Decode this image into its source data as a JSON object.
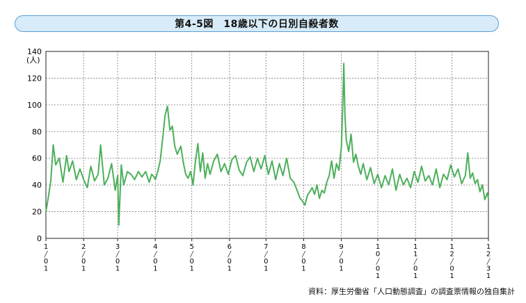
{
  "title": "第4-5図　18歳以下の日別自殺者数",
  "source": "資料：厚生労働省「人口動態調査」の調査票情報の独自集計",
  "chart_data": {
    "type": "line",
    "title": "第4-5図　18歳以下の日別自殺者数",
    "ylabel": "(人)",
    "ylim": [
      0,
      140
    ],
    "yticks": [
      0,
      20,
      40,
      60,
      80,
      100,
      120,
      140
    ],
    "grid": true,
    "line_color": "#4caf5a",
    "x_tick_labels": [
      "1/01",
      "2/01",
      "3/01",
      "4/01",
      "5/01",
      "6/01",
      "7/01",
      "8/01",
      "9/01",
      "10/01",
      "11/01",
      "12/01",
      "12/31"
    ],
    "x_tick_days": [
      1,
      32,
      60,
      91,
      121,
      152,
      182,
      213,
      244,
      274,
      305,
      335,
      365
    ],
    "series_keypoints": [
      [
        1,
        20
      ],
      [
        3,
        31
      ],
      [
        5,
        43
      ],
      [
        7,
        70
      ],
      [
        9,
        55
      ],
      [
        12,
        60
      ],
      [
        15,
        42
      ],
      [
        18,
        62
      ],
      [
        20,
        50
      ],
      [
        23,
        58
      ],
      [
        26,
        44
      ],
      [
        29,
        52
      ],
      [
        32,
        44
      ],
      [
        35,
        38
      ],
      [
        38,
        54
      ],
      [
        41,
        43
      ],
      [
        44,
        48
      ],
      [
        46,
        70
      ],
      [
        49,
        40
      ],
      [
        52,
        45
      ],
      [
        55,
        56
      ],
      [
        58,
        36
      ],
      [
        60,
        47
      ],
      [
        61,
        10
      ],
      [
        63,
        55
      ],
      [
        65,
        40
      ],
      [
        68,
        50
      ],
      [
        71,
        48
      ],
      [
        74,
        44
      ],
      [
        77,
        50
      ],
      [
        80,
        46
      ],
      [
        83,
        50
      ],
      [
        86,
        42
      ],
      [
        88,
        48
      ],
      [
        90,
        46
      ],
      [
        91,
        44
      ],
      [
        93,
        50
      ],
      [
        95,
        58
      ],
      [
        97,
        74
      ],
      [
        99,
        92
      ],
      [
        101,
        99
      ],
      [
        103,
        81
      ],
      [
        105,
        84
      ],
      [
        107,
        69
      ],
      [
        109,
        63
      ],
      [
        112,
        69
      ],
      [
        114,
        57
      ],
      [
        116,
        48
      ],
      [
        118,
        45
      ],
      [
        120,
        50
      ],
      [
        122,
        40
      ],
      [
        124,
        58
      ],
      [
        126,
        71
      ],
      [
        128,
        50
      ],
      [
        130,
        64
      ],
      [
        132,
        45
      ],
      [
        134,
        56
      ],
      [
        136,
        48
      ],
      [
        139,
        58
      ],
      [
        142,
        63
      ],
      [
        145,
        50
      ],
      [
        148,
        56
      ],
      [
        151,
        48
      ],
      [
        154,
        59
      ],
      [
        157,
        62
      ],
      [
        160,
        51
      ],
      [
        163,
        47
      ],
      [
        166,
        57
      ],
      [
        169,
        61
      ],
      [
        172,
        50
      ],
      [
        175,
        60
      ],
      [
        178,
        52
      ],
      [
        181,
        62
      ],
      [
        184,
        48
      ],
      [
        187,
        58
      ],
      [
        190,
        44
      ],
      [
        193,
        56
      ],
      [
        196,
        47
      ],
      [
        199,
        60
      ],
      [
        202,
        45
      ],
      [
        205,
        42
      ],
      [
        208,
        35
      ],
      [
        210,
        30
      ],
      [
        212,
        28
      ],
      [
        214,
        25
      ],
      [
        216,
        32
      ],
      [
        218,
        35
      ],
      [
        220,
        38
      ],
      [
        222,
        33
      ],
      [
        224,
        40
      ],
      [
        226,
        30
      ],
      [
        228,
        36
      ],
      [
        230,
        34
      ],
      [
        232,
        42
      ],
      [
        234,
        47
      ],
      [
        236,
        58
      ],
      [
        238,
        45
      ],
      [
        240,
        56
      ],
      [
        242,
        51
      ],
      [
        244,
        68
      ],
      [
        245,
        94
      ],
      [
        246,
        131
      ],
      [
        247,
        92
      ],
      [
        248,
        74
      ],
      [
        250,
        65
      ],
      [
        252,
        78
      ],
      [
        254,
        57
      ],
      [
        256,
        63
      ],
      [
        258,
        54
      ],
      [
        260,
        48
      ],
      [
        262,
        56
      ],
      [
        265,
        44
      ],
      [
        268,
        53
      ],
      [
        271,
        41
      ],
      [
        274,
        48
      ],
      [
        277,
        38
      ],
      [
        280,
        47
      ],
      [
        283,
        40
      ],
      [
        286,
        52
      ],
      [
        289,
        36
      ],
      [
        292,
        48
      ],
      [
        295,
        40
      ],
      [
        298,
        45
      ],
      [
        301,
        38
      ],
      [
        304,
        50
      ],
      [
        307,
        42
      ],
      [
        310,
        54
      ],
      [
        313,
        43
      ],
      [
        316,
        47
      ],
      [
        319,
        40
      ],
      [
        322,
        52
      ],
      [
        325,
        38
      ],
      [
        328,
        48
      ],
      [
        331,
        44
      ],
      [
        334,
        55
      ],
      [
        337,
        46
      ],
      [
        340,
        52
      ],
      [
        343,
        41
      ],
      [
        346,
        47
      ],
      [
        348,
        64
      ],
      [
        350,
        45
      ],
      [
        352,
        49
      ],
      [
        354,
        41
      ],
      [
        356,
        44
      ],
      [
        358,
        35
      ],
      [
        360,
        40
      ],
      [
        362,
        29
      ],
      [
        364,
        34
      ],
      [
        365,
        30
      ]
    ]
  }
}
